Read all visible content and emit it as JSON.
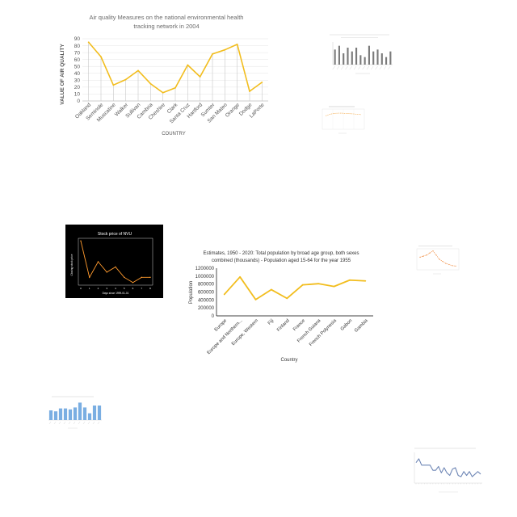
{
  "charts": {
    "c1": {
      "chart_data": {
        "type": "line",
        "title_lines": [
          "Air quality Measures on the national environmental health",
          "tracking network in 2004"
        ],
        "xlabel": "COUNTRY",
        "ylabel": "VALUE OF AIR QUALITY",
        "categories": [
          "Oakland",
          "Seminole",
          "Muscatine",
          "Walker",
          "Sullivan",
          "Cambria",
          "Cheshire",
          "Clark",
          "Santa Cruz",
          "Hartford",
          "Sumter",
          "San Mateo",
          "Orange",
          "Dodge",
          "LaPorte"
        ],
        "values": [
          85,
          64,
          23,
          31,
          44,
          25,
          12,
          19,
          52,
          35,
          68,
          74,
          82,
          14,
          27
        ],
        "ylim": [
          0,
          90
        ],
        "yticks": [
          0,
          10,
          20,
          30,
          40,
          50,
          60,
          70,
          80,
          90
        ],
        "colors": {
          "line": "#f2bd1d",
          "drop": "#c8c8c8",
          "grid": "#e4e4e4",
          "axis": "#bfbfbf"
        }
      }
    },
    "c2": {
      "chart_data": {
        "type": "bar",
        "title": "",
        "categories": [
          "a",
          "b",
          "c",
          "d",
          "e",
          "f",
          "g",
          "h",
          "i",
          "j",
          "k",
          "l",
          "m",
          "n"
        ],
        "values": [
          8,
          10,
          6,
          9,
          7,
          9,
          5,
          4,
          10,
          7,
          8,
          6,
          4,
          7
        ],
        "ylim": [
          0,
          12
        ],
        "colors": {
          "bar": "#7a7a7a"
        }
      }
    },
    "c3": {
      "chart_data": {
        "type": "line",
        "title": "",
        "x": [
          1,
          2,
          3,
          4,
          5,
          6,
          7,
          8
        ],
        "values": [
          8,
          9,
          9.5,
          9.6,
          9.4,
          9.2,
          9,
          8.7
        ],
        "ylim": [
          0,
          12
        ],
        "colors": {
          "line": "#f4a94a"
        }
      }
    },
    "c4": {
      "chart_data": {
        "type": "line",
        "title": "Stock price of NVU",
        "xlabel": "Days since 1999-01-01",
        "ylabel": "Closing stock price",
        "x": [
          0,
          1,
          2,
          3,
          4,
          5,
          6,
          7,
          8
        ],
        "values": [
          128,
          100,
          112,
          104,
          108,
          100,
          96,
          100,
          100
        ],
        "ylim": [
          94,
          130
        ],
        "xticks": [
          "0",
          "1",
          "2",
          "3",
          "4",
          "5",
          "6",
          "7",
          "8"
        ],
        "colors": {
          "line": "#ff9a2e",
          "bg": "#000000",
          "text": "#ffffff"
        }
      }
    },
    "c5": {
      "chart_data": {
        "type": "line",
        "title_lines": [
          "Estimates, 1950 - 2020: Total population by broad age group, both sexes",
          "combined (thousands) - Population aged 15-64 for the year 1955"
        ],
        "xlabel": "Country",
        "ylabel": "Population",
        "categories": [
          "Europe",
          "Europe and Northern...",
          "Europe, Western",
          "Fiji",
          "Finland",
          "France",
          "French Guiana",
          "French Polynesia",
          "Gabon",
          "Gambia"
        ],
        "values": [
          540000,
          980000,
          410000,
          660000,
          440000,
          780000,
          810000,
          740000,
          900000,
          880000
        ],
        "ylim": [
          0,
          1200000
        ],
        "yticks": [
          0,
          200000,
          400000,
          600000,
          800000,
          1000000,
          1200000
        ],
        "colors": {
          "line": "#f2bd1d",
          "axis": "#000000"
        }
      }
    },
    "c6": {
      "chart_data": {
        "type": "line",
        "title": "",
        "x": [
          1,
          2,
          3,
          4,
          5,
          6,
          7,
          8,
          9,
          10,
          11,
          12
        ],
        "values": [
          6,
          6.5,
          7,
          8,
          9,
          7,
          5,
          4,
          3,
          2.5,
          2,
          1.8
        ],
        "ylim": [
          0,
          10
        ],
        "colors": {
          "line": "#f08a3c"
        }
      }
    },
    "c7": {
      "chart_data": {
        "type": "bar",
        "title": "",
        "categories": [
          "a",
          "b",
          "c",
          "d",
          "e",
          "f",
          "g",
          "h",
          "i",
          "j",
          "k"
        ],
        "values": [
          5,
          4.5,
          6,
          6,
          5.5,
          6.5,
          9,
          6.5,
          3.5,
          7.5,
          7.5
        ],
        "ylim": [
          0,
          10
        ],
        "colors": {
          "bar": "#7aaee2"
        }
      }
    },
    "c8": {
      "chart_data": {
        "type": "line",
        "title": "",
        "x": [
          1,
          2,
          3,
          4,
          5,
          6,
          7,
          8,
          9,
          10,
          11,
          12,
          13,
          14,
          15,
          16,
          17,
          18,
          19,
          20,
          21,
          22,
          23,
          24
        ],
        "values": [
          8,
          9.5,
          7,
          7,
          7,
          7,
          5,
          5,
          6.5,
          4,
          6,
          4,
          3,
          5.5,
          6,
          3,
          2.5,
          4.5,
          3,
          4.5,
          2.5,
          3.5,
          4.5,
          3.5
        ],
        "ylim": [
          0,
          12
        ],
        "colors": {
          "line": "#6e86b5"
        }
      }
    }
  }
}
